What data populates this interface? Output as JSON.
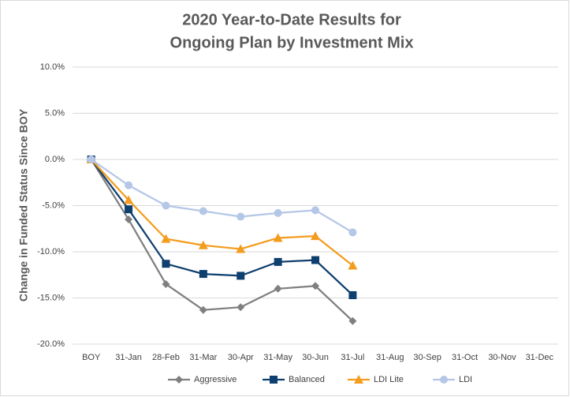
{
  "chart_data": {
    "type": "line",
    "title": [
      "2020 Year-to-Date Results for",
      "Ongoing Plan by Investment Mix"
    ],
    "y_label": "Change in Funded Status Since BOY",
    "categories": [
      "BOY",
      "31-Jan",
      "28-Feb",
      "31-Mar",
      "30-Apr",
      "31-May",
      "30-Jun",
      "31-Jul",
      "31-Aug",
      "30-Sep",
      "31-Oct",
      "30-Nov",
      "31-Dec"
    ],
    "series": [
      {
        "name": "Aggressive",
        "color": "#7f7f7f",
        "marker": "diamond",
        "values": [
          0,
          -6.5,
          -13.5,
          -16.3,
          -16.0,
          -14.0,
          -13.7,
          -17.5,
          null,
          null,
          null,
          null,
          null
        ]
      },
      {
        "name": "Balanced",
        "color": "#0e3f6e",
        "marker": "square",
        "values": [
          0,
          -5.4,
          -11.3,
          -12.4,
          -12.6,
          -11.1,
          -10.9,
          -14.7,
          null,
          null,
          null,
          null,
          null
        ]
      },
      {
        "name": "LDI Lite",
        "color": "#f39c1e",
        "marker": "triangle",
        "values": [
          0,
          -4.4,
          -8.6,
          -9.3,
          -9.7,
          -8.5,
          -8.3,
          -11.5,
          null,
          null,
          null,
          null,
          null
        ]
      },
      {
        "name": "LDI",
        "color": "#b4c7e7",
        "marker": "circle",
        "values": [
          0,
          -2.8,
          -5.0,
          -5.6,
          -6.2,
          -5.8,
          -5.5,
          -7.9,
          null,
          null,
          null,
          null,
          null
        ]
      }
    ],
    "ylim": [
      -20,
      10
    ],
    "yticks": [
      {
        "value": -20,
        "label": "-20.0%"
      },
      {
        "value": -15,
        "label": "-15.0%"
      },
      {
        "value": -10,
        "label": "-10.0%"
      },
      {
        "value": -5,
        "label": "-5.0%"
      },
      {
        "value": 0,
        "label": "0.0%"
      },
      {
        "value": 5,
        "label": "5.0%"
      },
      {
        "value": 10,
        "label": "10.0%"
      }
    ],
    "grid": true,
    "legend": "bottom"
  }
}
